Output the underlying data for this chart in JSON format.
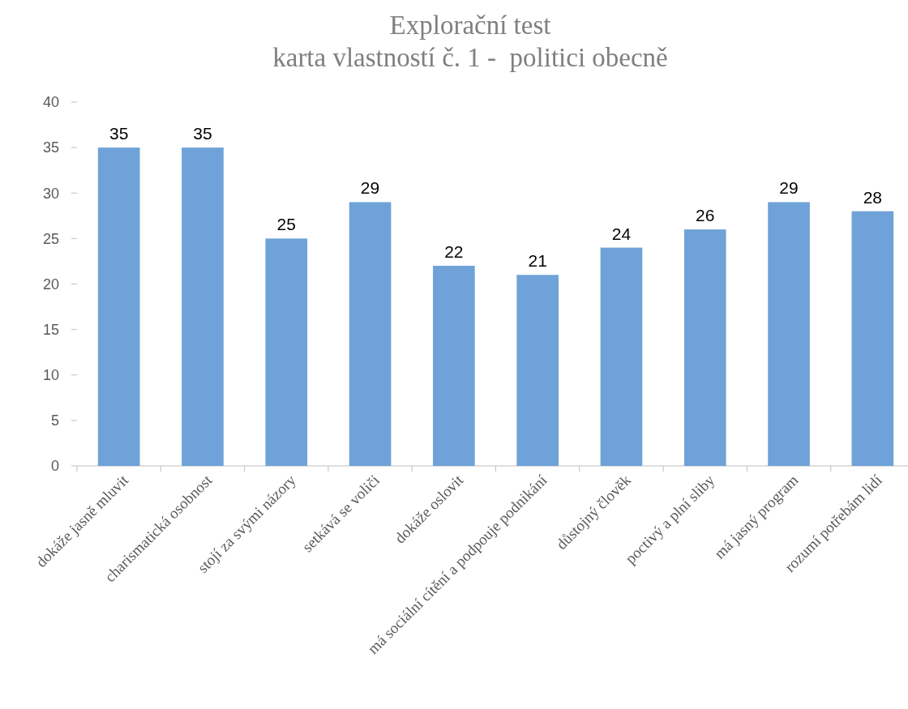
{
  "chart_data": {
    "type": "bar",
    "title": "Explorační test",
    "subtitle": "karta vlastností č. 1 -  politici obecně",
    "categories": [
      "dokáže jasně mluvit",
      "charismatická osobnost",
      "stojí za svými názory",
      "setkává se voliči",
      "dokáže oslovit",
      "má sociální cítění a podpouje podnikání",
      "důstojný člověk",
      "poctivý a plní sliby",
      "má jasný program",
      "rozumí potřebám lidí"
    ],
    "values": [
      35,
      35,
      25,
      29,
      22,
      21,
      24,
      26,
      29,
      28
    ],
    "color": "#6fa2d8",
    "ylim": [
      0,
      40
    ],
    "yticks": [
      0,
      5,
      10,
      15,
      20,
      25,
      30,
      35,
      40
    ],
    "data_labels": true,
    "grid": false
  }
}
